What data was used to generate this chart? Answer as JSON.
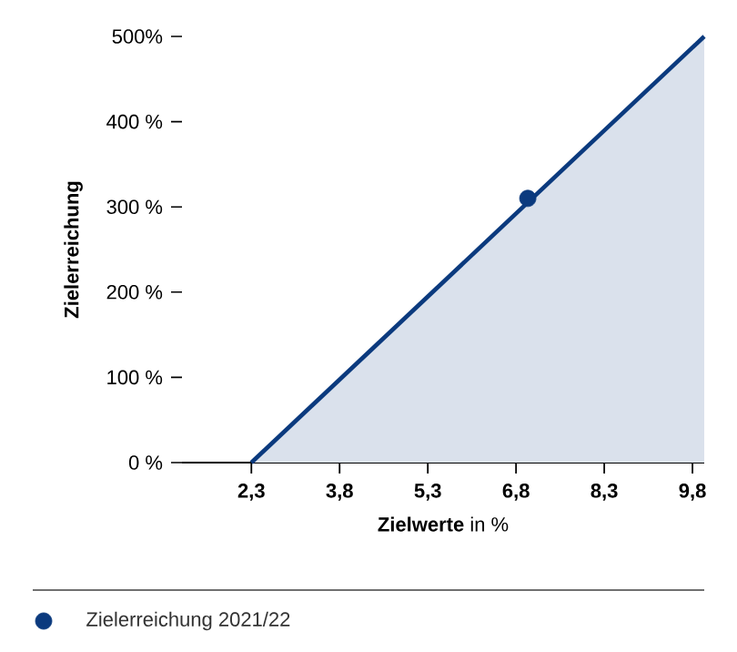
{
  "chart_data": {
    "type": "area",
    "xlabel": "**Zielwerte** in %",
    "ylabel": "Zielerreichung",
    "xlim": [
      1.12,
      10.0
    ],
    "ylim": [
      0,
      500
    ],
    "xticks": [
      {
        "value": 2.3,
        "label": "2,3"
      },
      {
        "value": 3.8,
        "label": "3,8"
      },
      {
        "value": 5.3,
        "label": "5,3"
      },
      {
        "value": 6.8,
        "label": "6,8"
      },
      {
        "value": 8.3,
        "label": "8,3"
      },
      {
        "value": 9.8,
        "label": "9,8"
      }
    ],
    "yticks": [
      {
        "value": 0,
        "label": "0 %"
      },
      {
        "value": 100,
        "label": "100 %"
      },
      {
        "value": 200,
        "label": "200 %"
      },
      {
        "value": 300,
        "label": "300 %"
      },
      {
        "value": 400,
        "label": "400 %"
      },
      {
        "value": 500,
        "label": "500%"
      }
    ],
    "legend": "bottom",
    "series": [
      {
        "color": "#0b3a7e",
        "x": [
          2.3,
          10.0
        ],
        "values": [
          0,
          500
        ]
      },
      {
        "type": "scatter",
        "name": "Zielerreichung 2021/22",
        "color": "#0b3a7e",
        "marker": "circle",
        "x": [
          7.0
        ],
        "values": [
          310
        ]
      }
    ]
  }
}
